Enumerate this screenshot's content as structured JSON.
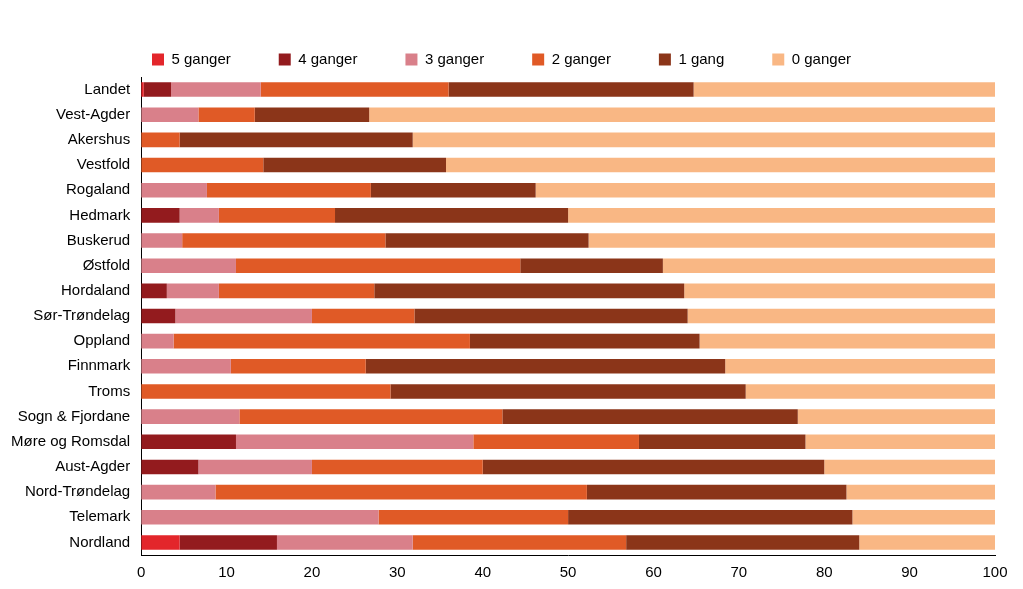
{
  "chart_data": {
    "type": "bar",
    "orientation": "horizontal",
    "stacked": true,
    "grid": false,
    "legend": "top",
    "categories": [
      "Landet",
      "Vest-Agder",
      "Akershus",
      "Vestfold",
      "Rogaland",
      "Hedmark",
      "Buskerud",
      "Østfold",
      "Hordaland",
      "Sør-Trøndelag",
      "Oppland",
      "Finnmark",
      "Troms",
      "Sogn & Fjordane",
      "Møre og Romsdal",
      "Aust-Agder",
      "Nord-Trøndelag",
      "Telemark",
      "Nordland"
    ],
    "xlim": [
      0,
      100
    ],
    "xticks": [
      0,
      10,
      20,
      30,
      40,
      50,
      60,
      70,
      80,
      90,
      100
    ],
    "series": [
      {
        "name": "5 ganger",
        "color": "#e3262b",
        "values": [
          0.3,
          0,
          0,
          0,
          0,
          0,
          0,
          0,
          0,
          0,
          0,
          0,
          0,
          0,
          0,
          0,
          0,
          0,
          4.5
        ]
      },
      {
        "name": "4 ganger",
        "color": "#931b1e",
        "values": [
          3.2,
          0,
          0,
          0,
          0,
          4.5,
          0,
          0,
          3.0,
          4.0,
          0,
          0,
          0,
          0,
          11.1,
          6.7,
          0,
          0,
          11.4
        ]
      },
      {
        "name": "3 ganger",
        "color": "#d9808a",
        "values": [
          10.5,
          6.7,
          0,
          0,
          7.7,
          4.6,
          4.8,
          11.1,
          6.1,
          16.0,
          3.8,
          10.5,
          0,
          11.5,
          27.8,
          13.3,
          8.7,
          27.8,
          15.9
        ]
      },
      {
        "name": "2 ganger",
        "color": "#e05a26",
        "values": [
          22.0,
          6.6,
          4.5,
          14.3,
          19.2,
          13.6,
          23.8,
          33.3,
          18.2,
          12.0,
          34.7,
          15.8,
          29.2,
          30.8,
          19.4,
          20.0,
          43.5,
          22.2,
          25.0
        ]
      },
      {
        "name": "1 gang",
        "color": "#8b3519",
        "values": [
          28.7,
          13.4,
          27.3,
          21.4,
          19.3,
          27.3,
          23.8,
          16.7,
          36.3,
          32.0,
          26.9,
          42.1,
          41.6,
          34.6,
          19.5,
          40.0,
          30.4,
          33.3,
          27.3
        ]
      },
      {
        "name": "0 ganger",
        "color": "#f9b784",
        "values": [
          35.3,
          73.3,
          68.2,
          64.3,
          53.8,
          50.0,
          47.6,
          38.9,
          36.4,
          36.0,
          34.6,
          31.6,
          29.2,
          23.1,
          22.2,
          20.0,
          17.4,
          16.7,
          15.9
        ]
      }
    ]
  }
}
